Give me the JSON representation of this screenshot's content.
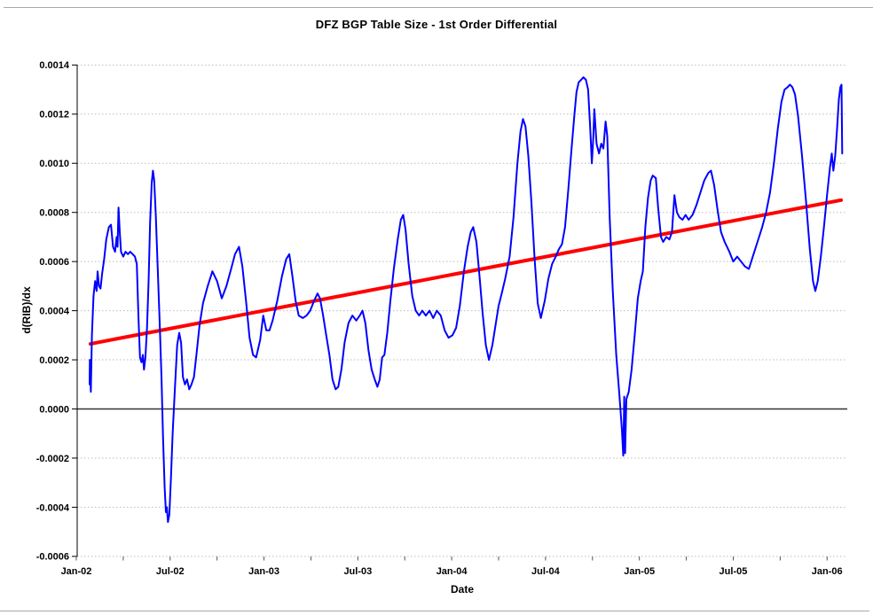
{
  "window": {
    "border_color": "#a8a8a8",
    "background": "#ffffff"
  },
  "chart_data": {
    "type": "line",
    "title": "DFZ BGP Table Size - 1st Order Differential",
    "xlabel": "Date",
    "ylabel": "d(RIB)/dx",
    "x_unit_months_since": "Jan-2002",
    "xlim_months": [
      0,
      49.3
    ],
    "ylim": [
      -0.0006,
      0.0014
    ],
    "grid": "horizontal-dotted",
    "colors": {
      "series": "#0000ff",
      "trend": "#ff0000",
      "grid": "#bbbbbb",
      "zero_line": "#333333",
      "axis": "#000000",
      "text": "#000000"
    },
    "y_ticks": [
      {
        "value": 0.0014,
        "label": "0.0014"
      },
      {
        "value": 0.0012,
        "label": "0.0012"
      },
      {
        "value": 0.001,
        "label": "0.0010"
      },
      {
        "value": 0.0008,
        "label": "0.0008"
      },
      {
        "value": 0.0006,
        "label": "0.0006"
      },
      {
        "value": 0.0004,
        "label": "0.0004"
      },
      {
        "value": 0.0002,
        "label": "0.0002"
      },
      {
        "value": 0.0,
        "label": "0.0000"
      },
      {
        "value": -0.0002,
        "label": "-0.0002"
      },
      {
        "value": -0.0004,
        "label": "-0.0004"
      },
      {
        "value": -0.0006,
        "label": "-0.0006"
      }
    ],
    "x_ticks": [
      {
        "month": 0,
        "label": "Jan-02"
      },
      {
        "month": 6,
        "label": "Jul-02"
      },
      {
        "month": 12,
        "label": "Jan-03"
      },
      {
        "month": 18,
        "label": "Jul-03"
      },
      {
        "month": 24,
        "label": "Jan-04"
      },
      {
        "month": 30,
        "label": "Jul-04"
      },
      {
        "month": 36,
        "label": "Jan-05"
      },
      {
        "month": 42,
        "label": "Jul-05"
      },
      {
        "month": 48,
        "label": "Jan-06"
      }
    ],
    "x_minor_tick_step_months": 3,
    "x_minor_tick_max_month": 48,
    "zero_line_value": 0,
    "trend": {
      "stroke_width": 4,
      "from": [
        0.9,
        0.000265
      ],
      "to": [
        48.9,
        0.00085
      ]
    },
    "series": [
      {
        "stroke_width": 2,
        "points": [
          [
            0.85,
            0.0001
          ],
          [
            0.87,
            0.0002
          ],
          [
            0.9,
            0.00012
          ],
          [
            0.93,
            7e-05
          ],
          [
            1.0,
            0.0003
          ],
          [
            1.1,
            0.00046
          ],
          [
            1.2,
            0.00052
          ],
          [
            1.3,
            0.00048
          ],
          [
            1.36,
            0.00056
          ],
          [
            1.45,
            0.0005
          ],
          [
            1.55,
            0.00049
          ],
          [
            1.65,
            0.00055
          ],
          [
            1.78,
            0.00061
          ],
          [
            1.92,
            0.00069
          ],
          [
            2.08,
            0.00074
          ],
          [
            2.22,
            0.00075
          ],
          [
            2.35,
            0.00066
          ],
          [
            2.48,
            0.00064
          ],
          [
            2.58,
            0.0007
          ],
          [
            2.64,
            0.00066
          ],
          [
            2.7,
            0.00082
          ],
          [
            2.78,
            0.00072
          ],
          [
            2.86,
            0.00064
          ],
          [
            3.0,
            0.00062
          ],
          [
            3.15,
            0.00064
          ],
          [
            3.3,
            0.00063
          ],
          [
            3.45,
            0.00064
          ],
          [
            3.6,
            0.00063
          ],
          [
            3.75,
            0.00062
          ],
          [
            3.87,
            0.00059
          ],
          [
            3.97,
            0.00038
          ],
          [
            4.07,
            0.00021
          ],
          [
            4.17,
            0.00019
          ],
          [
            4.26,
            0.00022
          ],
          [
            4.33,
            0.00016
          ],
          [
            4.42,
            0.00021
          ],
          [
            4.52,
            0.00033
          ],
          [
            4.62,
            0.00052
          ],
          [
            4.72,
            0.00076
          ],
          [
            4.82,
            0.00092
          ],
          [
            4.9,
            0.00097
          ],
          [
            4.98,
            0.00093
          ],
          [
            5.08,
            0.00079
          ],
          [
            5.2,
            0.00058
          ],
          [
            5.33,
            0.00035
          ],
          [
            5.45,
            0.00012
          ],
          [
            5.55,
            -0.00012
          ],
          [
            5.65,
            -0.00032
          ],
          [
            5.73,
            -0.00042
          ],
          [
            5.79,
            -0.0004
          ],
          [
            5.86,
            -0.00046
          ],
          [
            5.95,
            -0.00043
          ],
          [
            6.05,
            -0.00028
          ],
          [
            6.16,
            -0.0001
          ],
          [
            6.3,
            8e-05
          ],
          [
            6.45,
            0.00026
          ],
          [
            6.58,
            0.00031
          ],
          [
            6.7,
            0.00027
          ],
          [
            6.82,
            0.00013
          ],
          [
            6.95,
            0.0001
          ],
          [
            7.08,
            0.00012
          ],
          [
            7.22,
            8e-05
          ],
          [
            7.36,
            0.0001
          ],
          [
            7.52,
            0.00013
          ],
          [
            7.68,
            0.00022
          ],
          [
            7.88,
            0.00034
          ],
          [
            8.1,
            0.00043
          ],
          [
            8.4,
            0.0005
          ],
          [
            8.7,
            0.00056
          ],
          [
            9.0,
            0.00052
          ],
          [
            9.3,
            0.00045
          ],
          [
            9.6,
            0.0005
          ],
          [
            9.9,
            0.00057
          ],
          [
            10.15,
            0.00063
          ],
          [
            10.4,
            0.00066
          ],
          [
            10.62,
            0.00058
          ],
          [
            10.85,
            0.00044
          ],
          [
            11.08,
            0.00029
          ],
          [
            11.3,
            0.00022
          ],
          [
            11.5,
            0.00021
          ],
          [
            11.75,
            0.00028
          ],
          [
            11.95,
            0.00038
          ],
          [
            12.15,
            0.00032
          ],
          [
            12.35,
            0.00032
          ],
          [
            12.55,
            0.00036
          ],
          [
            12.85,
            0.00044
          ],
          [
            13.15,
            0.00054
          ],
          [
            13.42,
            0.00061
          ],
          [
            13.62,
            0.00063
          ],
          [
            13.82,
            0.00054
          ],
          [
            14.02,
            0.00044
          ],
          [
            14.22,
            0.00038
          ],
          [
            14.48,
            0.00037
          ],
          [
            14.72,
            0.00038
          ],
          [
            14.95,
            0.0004
          ],
          [
            15.2,
            0.00044
          ],
          [
            15.42,
            0.00047
          ],
          [
            15.58,
            0.00045
          ],
          [
            15.78,
            0.00038
          ],
          [
            15.98,
            0.0003
          ],
          [
            16.18,
            0.00022
          ],
          [
            16.38,
            0.00012
          ],
          [
            16.58,
            8e-05
          ],
          [
            16.75,
            9e-05
          ],
          [
            16.95,
            0.00016
          ],
          [
            17.15,
            0.00027
          ],
          [
            17.4,
            0.00035
          ],
          [
            17.65,
            0.00038
          ],
          [
            17.9,
            0.00036
          ],
          [
            18.12,
            0.00038
          ],
          [
            18.3,
            0.0004
          ],
          [
            18.48,
            0.00035
          ],
          [
            18.68,
            0.00024
          ],
          [
            18.88,
            0.00016
          ],
          [
            19.08,
            0.00012
          ],
          [
            19.25,
            9e-05
          ],
          [
            19.4,
            0.00012
          ],
          [
            19.55,
            0.00021
          ],
          [
            19.7,
            0.00022
          ],
          [
            19.88,
            0.00031
          ],
          [
            20.08,
            0.00044
          ],
          [
            20.3,
            0.00057
          ],
          [
            20.55,
            0.00069
          ],
          [
            20.75,
            0.00077
          ],
          [
            20.9,
            0.00079
          ],
          [
            21.05,
            0.00073
          ],
          [
            21.25,
            0.00059
          ],
          [
            21.48,
            0.00046
          ],
          [
            21.7,
            0.0004
          ],
          [
            21.92,
            0.00038
          ],
          [
            22.12,
            0.0004
          ],
          [
            22.35,
            0.00038
          ],
          [
            22.58,
            0.0004
          ],
          [
            22.82,
            0.00037
          ],
          [
            23.05,
            0.0004
          ],
          [
            23.3,
            0.00038
          ],
          [
            23.55,
            0.00032
          ],
          [
            23.8,
            0.00029
          ],
          [
            24.05,
            0.0003
          ],
          [
            24.28,
            0.00033
          ],
          [
            24.52,
            0.00042
          ],
          [
            24.78,
            0.00056
          ],
          [
            25.02,
            0.00066
          ],
          [
            25.22,
            0.00072
          ],
          [
            25.38,
            0.00074
          ],
          [
            25.58,
            0.00068
          ],
          [
            25.78,
            0.00054
          ],
          [
            25.98,
            0.00039
          ],
          [
            26.18,
            0.00026
          ],
          [
            26.38,
            0.0002
          ],
          [
            26.6,
            0.00026
          ],
          [
            26.8,
            0.00034
          ],
          [
            27.0,
            0.00042
          ],
          [
            27.2,
            0.00047
          ],
          [
            27.42,
            0.00053
          ],
          [
            27.7,
            0.00062
          ],
          [
            27.95,
            0.00078
          ],
          [
            28.2,
            0.001
          ],
          [
            28.4,
            0.00113
          ],
          [
            28.56,
            0.00118
          ],
          [
            28.72,
            0.00115
          ],
          [
            28.9,
            0.00103
          ],
          [
            29.1,
            0.00084
          ],
          [
            29.3,
            0.00061
          ],
          [
            29.5,
            0.00043
          ],
          [
            29.7,
            0.00037
          ],
          [
            29.95,
            0.00044
          ],
          [
            30.18,
            0.00053
          ],
          [
            30.42,
            0.00059
          ],
          [
            30.65,
            0.00062
          ],
          [
            30.85,
            0.00065
          ],
          [
            31.05,
            0.00067
          ],
          [
            31.25,
            0.00074
          ],
          [
            31.45,
            0.00089
          ],
          [
            31.65,
            0.00105
          ],
          [
            31.85,
            0.0012
          ],
          [
            31.98,
            0.00129
          ],
          [
            32.12,
            0.00133
          ],
          [
            32.28,
            0.00134
          ],
          [
            32.42,
            0.00135
          ],
          [
            32.58,
            0.00134
          ],
          [
            32.72,
            0.0013
          ],
          [
            32.86,
            0.00114
          ],
          [
            32.96,
            0.001
          ],
          [
            33.06,
            0.00111
          ],
          [
            33.12,
            0.00122
          ],
          [
            33.26,
            0.00108
          ],
          [
            33.42,
            0.00104
          ],
          [
            33.56,
            0.00108
          ],
          [
            33.7,
            0.00106
          ],
          [
            33.84,
            0.00117
          ],
          [
            33.95,
            0.00111
          ],
          [
            34.1,
            0.00078
          ],
          [
            34.3,
            0.00048
          ],
          [
            34.52,
            0.00022
          ],
          [
            34.72,
            6e-05
          ],
          [
            34.88,
            -8e-05
          ],
          [
            34.97,
            -0.00019
          ],
          [
            35.03,
            5e-05
          ],
          [
            35.09,
            -0.00018
          ],
          [
            35.17,
            4e-05
          ],
          [
            35.32,
            7e-05
          ],
          [
            35.5,
            0.00016
          ],
          [
            35.7,
            0.0003
          ],
          [
            35.9,
            0.00045
          ],
          [
            36.08,
            0.00052
          ],
          [
            36.22,
            0.00056
          ],
          [
            36.38,
            0.00074
          ],
          [
            36.55,
            0.00086
          ],
          [
            36.72,
            0.00093
          ],
          [
            36.85,
            0.00095
          ],
          [
            37.05,
            0.00094
          ],
          [
            37.2,
            0.00082
          ],
          [
            37.38,
            0.0007
          ],
          [
            37.52,
            0.00068
          ],
          [
            37.72,
            0.0007
          ],
          [
            37.92,
            0.00069
          ],
          [
            38.08,
            0.00072
          ],
          [
            38.24,
            0.00087
          ],
          [
            38.4,
            0.0008
          ],
          [
            38.56,
            0.00078
          ],
          [
            38.76,
            0.00077
          ],
          [
            38.95,
            0.00079
          ],
          [
            39.15,
            0.00077
          ],
          [
            39.4,
            0.00079
          ],
          [
            39.65,
            0.00083
          ],
          [
            39.9,
            0.00088
          ],
          [
            40.15,
            0.00093
          ],
          [
            40.4,
            0.00096
          ],
          [
            40.58,
            0.00097
          ],
          [
            40.78,
            0.00091
          ],
          [
            41.0,
            0.00081
          ],
          [
            41.22,
            0.00072
          ],
          [
            41.45,
            0.00068
          ],
          [
            41.75,
            0.00064
          ],
          [
            42.0,
            0.0006
          ],
          [
            42.25,
            0.00062
          ],
          [
            42.5,
            0.0006
          ],
          [
            42.75,
            0.00058
          ],
          [
            43.0,
            0.00057
          ],
          [
            43.25,
            0.00062
          ],
          [
            43.55,
            0.00068
          ],
          [
            43.85,
            0.00074
          ],
          [
            44.1,
            0.0008
          ],
          [
            44.35,
            0.00088
          ],
          [
            44.6,
            0.001
          ],
          [
            44.85,
            0.00114
          ],
          [
            45.08,
            0.00125
          ],
          [
            45.28,
            0.0013
          ],
          [
            45.48,
            0.00131
          ],
          [
            45.62,
            0.00132
          ],
          [
            45.78,
            0.00131
          ],
          [
            45.95,
            0.00128
          ],
          [
            46.15,
            0.00119
          ],
          [
            46.4,
            0.00103
          ],
          [
            46.65,
            0.00085
          ],
          [
            46.9,
            0.00065
          ],
          [
            47.1,
            0.00052
          ],
          [
            47.25,
            0.00048
          ],
          [
            47.4,
            0.00052
          ],
          [
            47.6,
            0.00062
          ],
          [
            47.8,
            0.00074
          ],
          [
            48.0,
            0.00087
          ],
          [
            48.18,
            0.00098
          ],
          [
            48.3,
            0.00104
          ],
          [
            48.4,
            0.00097
          ],
          [
            48.52,
            0.00103
          ],
          [
            48.64,
            0.00114
          ],
          [
            48.75,
            0.00126
          ],
          [
            48.85,
            0.00131
          ],
          [
            48.92,
            0.00132
          ],
          [
            48.97,
            0.00104
          ]
        ]
      }
    ]
  }
}
